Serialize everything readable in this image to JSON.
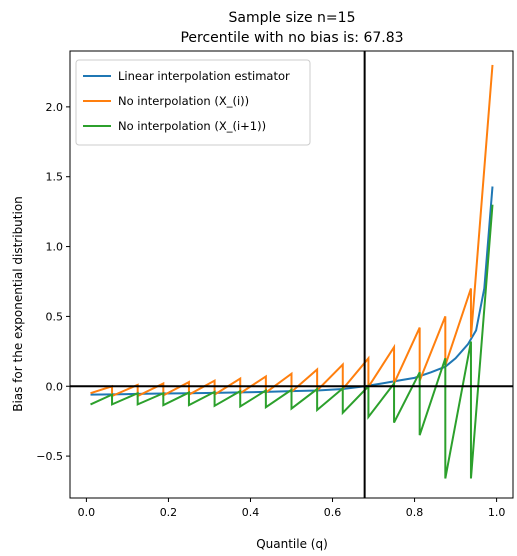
{
  "chart_data": {
    "type": "line",
    "title_lines": [
      "Sample size n=15",
      "Percentile with no bias is: 67.83"
    ],
    "xlabel": "Quantile (q)",
    "ylabel": "Bias for the exponential distribution",
    "xlim": [
      -0.04,
      1.04
    ],
    "ylim": [
      -0.8,
      2.4
    ],
    "xticks": [
      0.0,
      0.2,
      0.4,
      0.6,
      0.8,
      1.0
    ],
    "xtick_labels": [
      "0.0",
      "0.2",
      "0.4",
      "0.6",
      "0.8",
      "1.0"
    ],
    "yticks": [
      -0.5,
      0.0,
      0.5,
      1.0,
      1.5,
      2.0
    ],
    "ytick_labels": [
      "−0.5",
      "0.0",
      "0.5",
      "1.0",
      "1.5",
      "2.0"
    ],
    "hline_y": 0.0,
    "vline_x": 0.6783,
    "legend_position": "upper-left",
    "series": [
      {
        "name": "Linear interpolation estimator",
        "color": "#1f77b4",
        "x": [
          0.01,
          0.0625,
          0.125,
          0.1875,
          0.25,
          0.3125,
          0.375,
          0.4375,
          0.5,
          0.5625,
          0.625,
          0.6783,
          0.72,
          0.76,
          0.8,
          0.84,
          0.875,
          0.9,
          0.93,
          0.95,
          0.97,
          0.99
        ],
        "y": [
          -0.06,
          -0.058,
          -0.055,
          -0.052,
          -0.05,
          -0.047,
          -0.044,
          -0.04,
          -0.035,
          -0.03,
          -0.02,
          0.0,
          0.02,
          0.04,
          0.06,
          0.1,
          0.14,
          0.2,
          0.3,
          0.4,
          0.7,
          1.43
        ]
      },
      {
        "name": "No interpolation (X_(i))",
        "color": "#ff7f0e",
        "x": [
          0.01,
          0.0625,
          0.0625,
          0.125,
          0.125,
          0.1875,
          0.1875,
          0.25,
          0.25,
          0.3125,
          0.3125,
          0.375,
          0.375,
          0.4375,
          0.4375,
          0.5,
          0.5,
          0.5625,
          0.5625,
          0.625,
          0.625,
          0.6875,
          0.6875,
          0.75,
          0.75,
          0.8125,
          0.8125,
          0.875,
          0.875,
          0.9375,
          0.9375,
          0.99
        ],
        "y": [
          -0.05,
          0.0,
          -0.07,
          0.01,
          -0.07,
          0.02,
          -0.065,
          0.03,
          -0.06,
          0.04,
          -0.06,
          0.055,
          -0.05,
          0.07,
          -0.045,
          0.09,
          -0.04,
          0.12,
          -0.03,
          0.155,
          -0.02,
          0.2,
          -0.005,
          0.28,
          0.02,
          0.42,
          0.04,
          0.5,
          0.15,
          0.7,
          0.35,
          2.3
        ]
      },
      {
        "name": "No interpolation (X_(i+1))",
        "color": "#2ca02c",
        "x": [
          0.01,
          0.0625,
          0.0625,
          0.125,
          0.125,
          0.1875,
          0.1875,
          0.25,
          0.25,
          0.3125,
          0.3125,
          0.375,
          0.375,
          0.4375,
          0.4375,
          0.5,
          0.5,
          0.5625,
          0.5625,
          0.625,
          0.625,
          0.6875,
          0.6875,
          0.75,
          0.75,
          0.8125,
          0.8125,
          0.875,
          0.875,
          0.9375,
          0.9375,
          0.99
        ],
        "y": [
          -0.13,
          -0.06,
          -0.13,
          -0.05,
          -0.13,
          -0.05,
          -0.135,
          -0.045,
          -0.135,
          -0.04,
          -0.14,
          -0.035,
          -0.145,
          -0.03,
          -0.15,
          -0.025,
          -0.16,
          -0.02,
          -0.17,
          -0.015,
          -0.19,
          0.0,
          -0.22,
          0.02,
          -0.26,
          0.1,
          -0.35,
          0.2,
          -0.66,
          0.32,
          -0.66,
          1.3
        ]
      }
    ]
  }
}
